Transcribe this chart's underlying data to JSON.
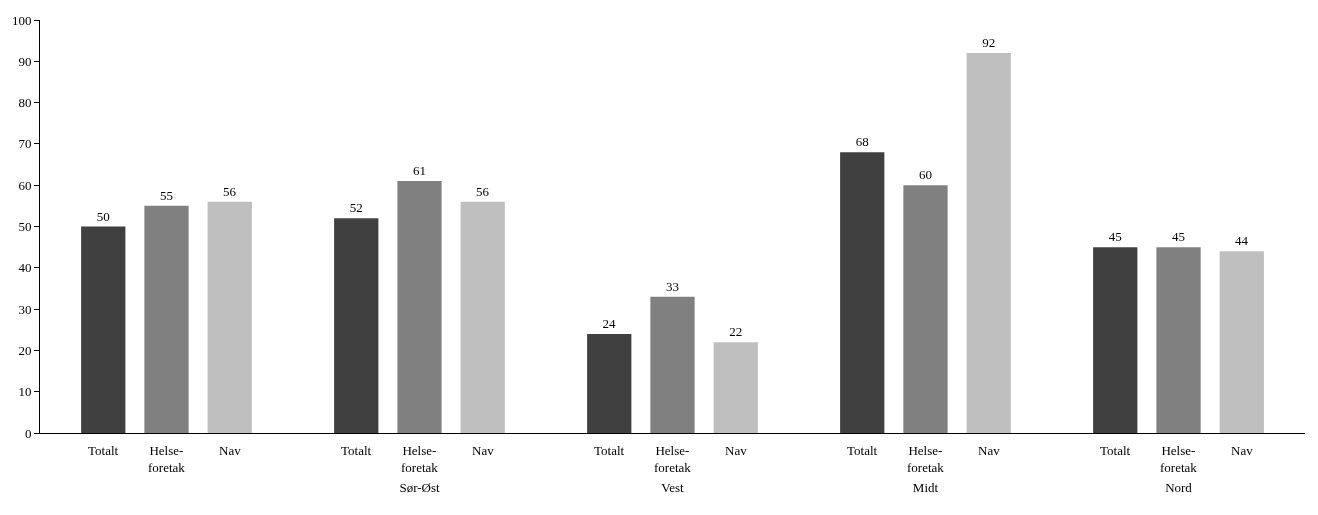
{
  "chart_data": {
    "type": "bar",
    "categories": [
      null,
      "Sør-Øst",
      "Vest",
      "Midt",
      "Nord"
    ],
    "series": [
      {
        "name": "Totalt",
        "color": "#404040",
        "values": [
          50,
          52,
          24,
          68,
          45
        ]
      },
      {
        "name": "Helse-foretak",
        "color": "#808080",
        "values": [
          55,
          61,
          33,
          60,
          45
        ]
      },
      {
        "name": "Nav",
        "color": "#bfbfbf",
        "values": [
          56,
          56,
          22,
          92,
          44
        ]
      }
    ],
    "ylim": [
      0,
      100
    ],
    "yticks": [
      0,
      10,
      20,
      30,
      40,
      50,
      60,
      70,
      80,
      90,
      100
    ],
    "grid": false,
    "legend": false,
    "data_labels": true
  }
}
